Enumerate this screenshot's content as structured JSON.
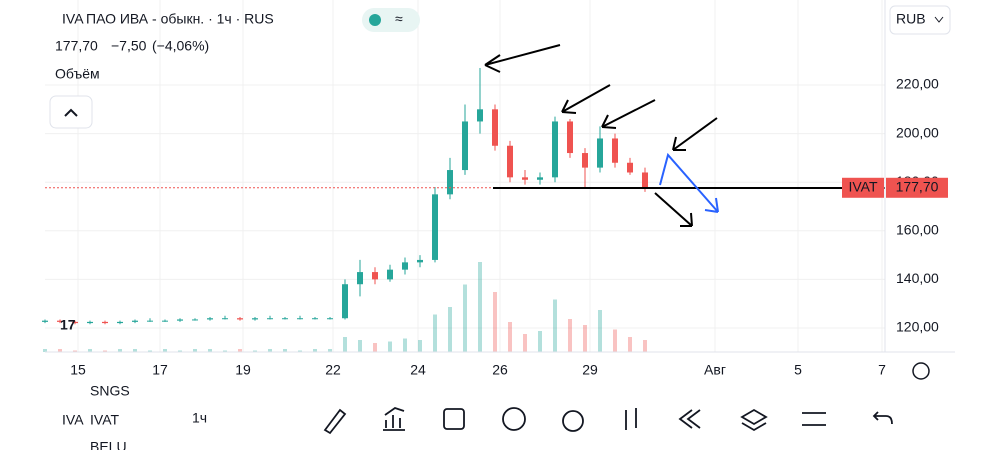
{
  "header": {
    "title": "ПАО ИВА - обыкн. · 1ч · RUS",
    "price": "177,70",
    "change": "−7,50",
    "change_pct": "(−4,06%)",
    "volume_label": "Объём",
    "currency": "RUB"
  },
  "toolbar": {
    "symbol": "IVAT",
    "interval": "1ч",
    "watch_prev": "SNGS",
    "watch_next": "BELU"
  },
  "chart_data": {
    "type": "candlestick",
    "up_color": "#26a69a",
    "down_color": "#ef5350",
    "x": [
      0,
      1.5,
      3,
      4.5,
      6,
      7.5,
      9,
      10.5,
      12,
      13.5,
      15,
      16.5,
      18,
      19.5,
      21,
      22.5,
      24,
      25.5,
      27,
      28.5,
      30,
      31.5,
      33,
      34.5,
      36,
      37.5,
      39,
      40.5,
      42,
      43.5,
      45,
      46.5,
      48,
      49.5,
      51,
      52.5,
      54,
      55.5,
      57,
      58.5,
      60
    ],
    "open": [
      122.5,
      123,
      122.5,
      122,
      122.5,
      122,
      122.5,
      123,
      123,
      123,
      123.5,
      123.5,
      124,
      124,
      123.5,
      124,
      124,
      124,
      124,
      124,
      124,
      138,
      143,
      140,
      144,
      147,
      148,
      175,
      185,
      205,
      210,
      195,
      182,
      181,
      182,
      205,
      192,
      186,
      198,
      188,
      184
    ],
    "high": [
      123.5,
      123.5,
      123,
      123,
      123,
      123,
      123.5,
      124,
      123.5,
      124,
      124,
      124.5,
      125,
      124.5,
      124.5,
      125,
      124.5,
      125,
      124.5,
      124.5,
      140,
      148,
      145,
      146,
      149,
      150,
      178,
      190,
      212,
      227,
      212,
      197,
      185,
      184,
      207,
      206,
      194,
      203,
      200,
      190,
      186
    ],
    "low": [
      122,
      122,
      121.5,
      121.5,
      121.5,
      121.5,
      122,
      122.5,
      122.5,
      122.5,
      123,
      123,
      123.5,
      123,
      123,
      123.5,
      123.5,
      123.5,
      123.5,
      123.5,
      123.5,
      133,
      138,
      139,
      142,
      145,
      147,
      173,
      183,
      200,
      193,
      180,
      179,
      179,
      180,
      190,
      178,
      184,
      186,
      183,
      176
    ],
    "close": [
      123,
      122.5,
      122,
      122.5,
      122,
      122.5,
      123,
      123,
      123,
      123.5,
      123.5,
      124,
      124,
      123.5,
      124,
      124,
      124,
      124,
      124,
      124,
      138,
      143,
      140,
      144,
      147,
      148,
      175,
      185,
      205,
      210,
      195,
      182,
      181,
      182,
      205,
      192,
      186,
      198,
      188,
      184,
      177.7
    ],
    "volume": [
      2,
      2,
      1,
      2,
      1,
      2,
      2,
      1,
      2,
      1,
      2,
      2,
      1,
      2,
      1,
      2,
      2,
      1,
      2,
      2,
      10,
      8,
      6,
      7,
      9,
      8,
      25,
      30,
      45,
      60,
      40,
      20,
      12,
      14,
      35,
      22,
      18,
      28,
      15,
      10,
      8
    ],
    "xlim": [
      0,
      84
    ],
    "ylim": [
      110.1,
      255
    ],
    "yticks": [
      {
        "value": 120,
        "label": "120,00"
      },
      {
        "value": 140,
        "label": "140,00"
      },
      {
        "value": 160,
        "label": "160,00"
      },
      {
        "value": 180,
        "label": "180,00"
      },
      {
        "value": 200,
        "label": "200,00"
      },
      {
        "value": 220,
        "label": "220,00"
      }
    ],
    "xticks": [
      {
        "value": 3.3,
        "label": "15"
      },
      {
        "value": 11.5,
        "label": "17"
      },
      {
        "value": 19.8,
        "label": "19"
      },
      {
        "value": 28.8,
        "label": "22"
      },
      {
        "value": 37.3,
        "label": "24"
      },
      {
        "value": 45.5,
        "label": "26"
      },
      {
        "value": 54.5,
        "label": "29"
      },
      {
        "value": 67,
        "label": "Авг"
      },
      {
        "value": 75.3,
        "label": "5"
      },
      {
        "value": 83.7,
        "label": "7"
      }
    ],
    "last_price": {
      "value": 177.7,
      "label": "177,70"
    },
    "last_symbol": "IVAT",
    "grid": true
  }
}
